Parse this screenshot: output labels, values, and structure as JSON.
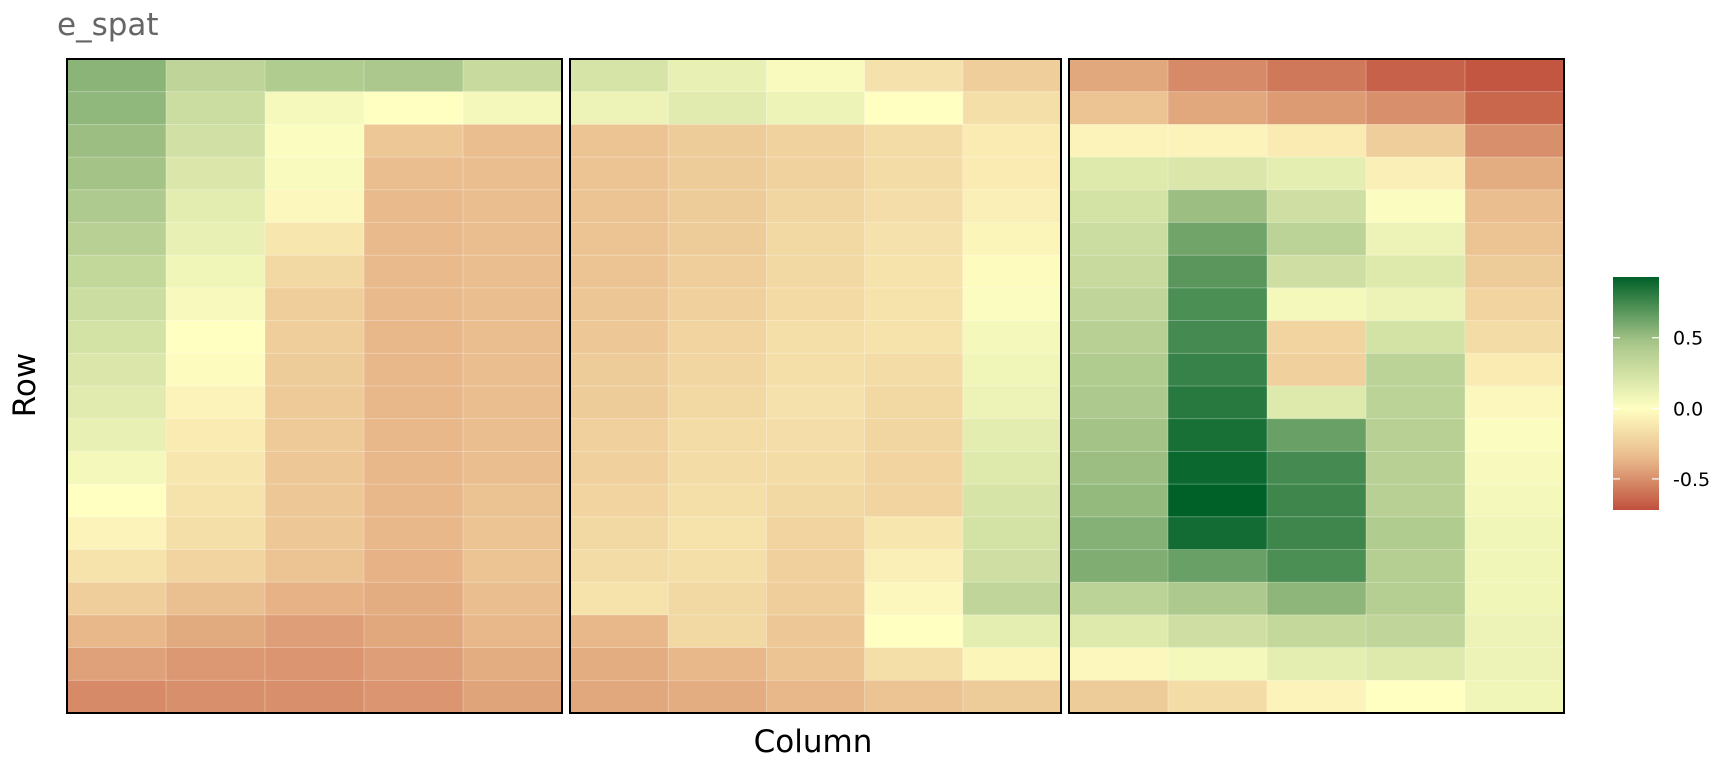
{
  "chart_data": {
    "type": "heatmap",
    "title": "e_spat",
    "xlabel": "Column",
    "ylabel": "Row",
    "legend": {
      "position": "right",
      "ticks": [
        0.5,
        0.0,
        -0.5
      ],
      "tick_labels": [
        "0.5",
        "0.0",
        "-0.5"
      ],
      "range": [
        -0.72,
        0.93
      ],
      "colors": {
        "low": "#c0503c",
        "mid": "#ffffc2",
        "high": "#006128",
        "low_mid": "#e8b88a",
        "high_mid": "#a9c68a"
      }
    },
    "panels": [
      {
        "values": [
          [
            0.55,
            0.35,
            0.42,
            0.45,
            0.3
          ],
          [
            0.53,
            0.28,
            0.05,
            0.0,
            0.06
          ],
          [
            0.5,
            0.25,
            0.02,
            -0.28,
            -0.33
          ],
          [
            0.48,
            0.2,
            0.03,
            -0.33,
            -0.33
          ],
          [
            0.43,
            0.15,
            -0.04,
            -0.35,
            -0.33
          ],
          [
            0.38,
            0.12,
            -0.12,
            -0.35,
            -0.33
          ],
          [
            0.33,
            0.08,
            -0.2,
            -0.35,
            -0.33
          ],
          [
            0.28,
            0.04,
            -0.25,
            -0.35,
            -0.33
          ],
          [
            0.24,
            0.0,
            -0.25,
            -0.36,
            -0.33
          ],
          [
            0.2,
            -0.02,
            -0.26,
            -0.36,
            -0.33
          ],
          [
            0.16,
            -0.06,
            -0.27,
            -0.36,
            -0.33
          ],
          [
            0.12,
            -0.1,
            -0.27,
            -0.36,
            -0.33
          ],
          [
            0.06,
            -0.12,
            -0.28,
            -0.36,
            -0.33
          ],
          [
            0.0,
            -0.14,
            -0.28,
            -0.36,
            -0.31
          ],
          [
            -0.06,
            -0.16,
            -0.28,
            -0.36,
            -0.3
          ],
          [
            -0.14,
            -0.22,
            -0.3,
            -0.38,
            -0.3
          ],
          [
            -0.25,
            -0.32,
            -0.38,
            -0.4,
            -0.33
          ],
          [
            -0.36,
            -0.41,
            -0.45,
            -0.42,
            -0.36
          ],
          [
            -0.44,
            -0.47,
            -0.48,
            -0.45,
            -0.4
          ],
          [
            -0.52,
            -0.5,
            -0.5,
            -0.48,
            -0.43
          ]
        ]
      },
      {
        "values": [
          [
            0.22,
            0.12,
            0.03,
            -0.15,
            -0.25
          ],
          [
            0.1,
            0.16,
            0.1,
            0.0,
            -0.16
          ],
          [
            -0.3,
            -0.26,
            -0.23,
            -0.18,
            -0.1
          ],
          [
            -0.3,
            -0.26,
            -0.23,
            -0.18,
            -0.1
          ],
          [
            -0.3,
            -0.26,
            -0.21,
            -0.17,
            -0.08
          ],
          [
            -0.3,
            -0.26,
            -0.2,
            -0.15,
            -0.05
          ],
          [
            -0.3,
            -0.25,
            -0.2,
            -0.14,
            -0.02
          ],
          [
            -0.29,
            -0.24,
            -0.19,
            -0.14,
            0.02
          ],
          [
            -0.28,
            -0.22,
            -0.16,
            -0.14,
            0.06
          ],
          [
            -0.26,
            -0.21,
            -0.16,
            -0.18,
            0.08
          ],
          [
            -0.26,
            -0.2,
            -0.15,
            -0.2,
            0.1
          ],
          [
            -0.24,
            -0.18,
            -0.17,
            -0.21,
            0.15
          ],
          [
            -0.24,
            -0.18,
            -0.18,
            -0.22,
            0.18
          ],
          [
            -0.22,
            -0.16,
            -0.2,
            -0.22,
            0.22
          ],
          [
            -0.2,
            -0.14,
            -0.22,
            -0.12,
            0.24
          ],
          [
            -0.18,
            -0.16,
            -0.24,
            -0.08,
            0.26
          ],
          [
            -0.14,
            -0.2,
            -0.25,
            -0.04,
            0.34
          ],
          [
            -0.36,
            -0.2,
            -0.28,
            0.0,
            0.14
          ],
          [
            -0.4,
            -0.36,
            -0.3,
            -0.16,
            -0.05
          ],
          [
            -0.42,
            -0.4,
            -0.36,
            -0.3,
            -0.26
          ]
        ]
      },
      {
        "values": [
          [
            -0.42,
            -0.52,
            -0.58,
            -0.66,
            -0.7
          ],
          [
            -0.3,
            -0.42,
            -0.46,
            -0.5,
            -0.64
          ],
          [
            -0.06,
            -0.06,
            -0.1,
            -0.25,
            -0.5
          ],
          [
            0.18,
            0.2,
            0.14,
            -0.08,
            -0.4
          ],
          [
            0.24,
            0.5,
            0.26,
            0.02,
            -0.33
          ],
          [
            0.28,
            0.62,
            0.36,
            0.1,
            -0.3
          ],
          [
            0.3,
            0.68,
            0.26,
            0.18,
            -0.26
          ],
          [
            0.34,
            0.72,
            0.06,
            0.1,
            -0.22
          ],
          [
            0.38,
            0.74,
            -0.22,
            0.24,
            -0.18
          ],
          [
            0.42,
            0.78,
            -0.24,
            0.36,
            -0.1
          ],
          [
            0.44,
            0.82,
            0.18,
            0.36,
            -0.04
          ],
          [
            0.48,
            0.86,
            0.64,
            0.38,
            0.02
          ],
          [
            0.5,
            0.9,
            0.74,
            0.38,
            0.04
          ],
          [
            0.52,
            0.93,
            0.76,
            0.38,
            0.06
          ],
          [
            0.56,
            0.88,
            0.76,
            0.42,
            0.08
          ],
          [
            0.58,
            0.64,
            0.72,
            0.4,
            0.08
          ],
          [
            0.36,
            0.44,
            0.54,
            0.4,
            0.08
          ],
          [
            0.18,
            0.26,
            0.32,
            0.34,
            0.1
          ],
          [
            -0.04,
            0.06,
            0.14,
            0.18,
            0.1
          ],
          [
            -0.26,
            -0.18,
            -0.06,
            0.0,
            0.08
          ]
        ]
      }
    ]
  }
}
